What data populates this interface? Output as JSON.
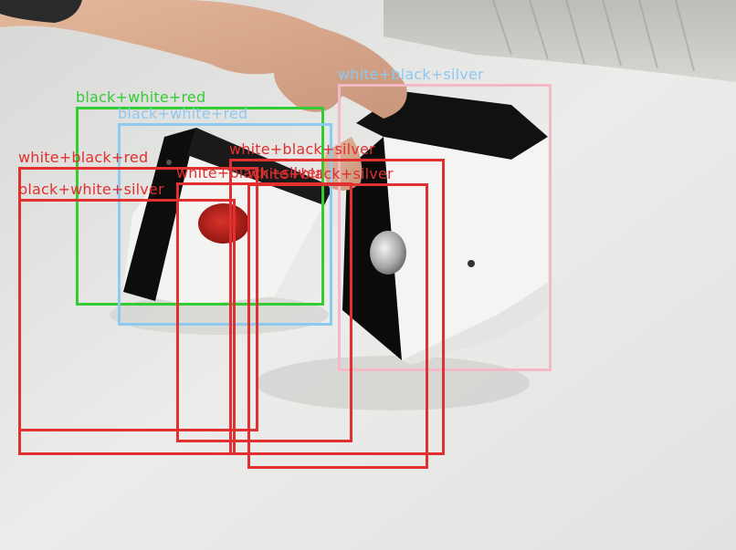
{
  "image": {
    "scene": "hand placing two white, black and silver push-button boxes on a light table",
    "colors": {
      "red_box": "#e03030",
      "green_box": "#33cc33",
      "blue_box": "#8ec9f0",
      "pink_box": "#f5b8c6"
    }
  },
  "detections": [
    {
      "label": "white+black+silver",
      "color": "#f5b8c6"
    },
    {
      "label": "black+white+red",
      "color": "#33cc33"
    },
    {
      "label": "black+white+red",
      "color": "#8ec9f0"
    },
    {
      "label": "white+black+red",
      "color": "#e03030"
    },
    {
      "label": "black+white+silver",
      "color": "#e03030"
    },
    {
      "label": "white+black+silver",
      "color": "#e03030"
    },
    {
      "label": "white+black+silver",
      "color": "#e03030"
    },
    {
      "label": "white+black+silver",
      "color": "#e03030"
    }
  ]
}
